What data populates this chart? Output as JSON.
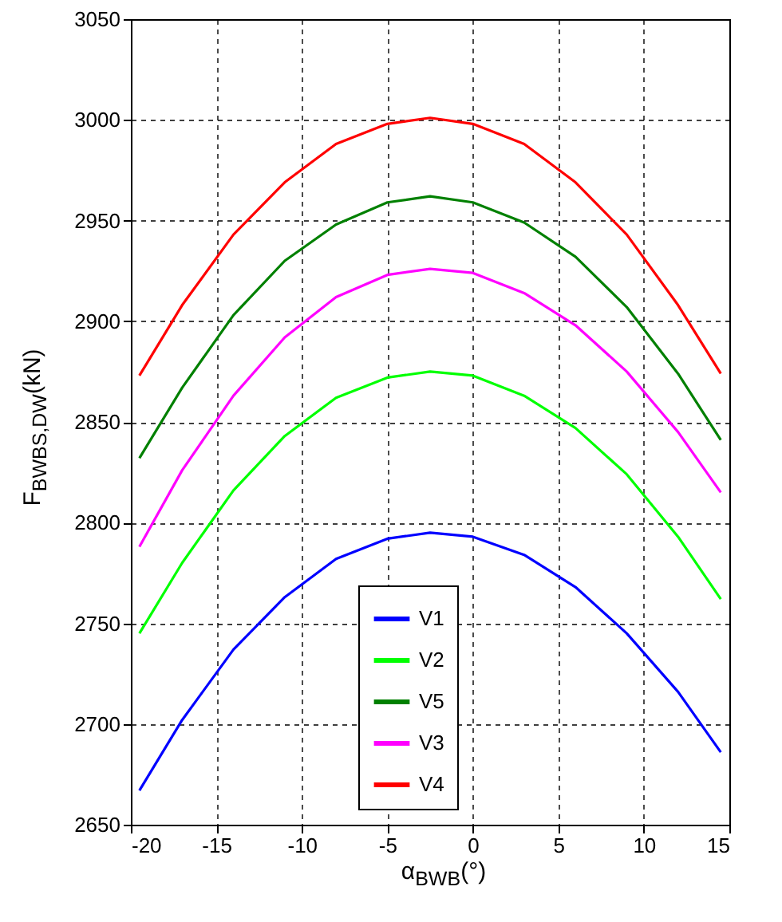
{
  "chart_data": {
    "type": "line",
    "xlabel": "α$_{BWB}$(°)",
    "ylabel": "F$_{BWBS,DW}$(kN)",
    "x": [
      -19.5,
      -17,
      -14,
      -11,
      -8,
      -5,
      -2.5,
      0,
      3,
      6,
      9,
      12,
      14.5
    ],
    "series": [
      {
        "name": "V1",
        "color": "#0000ff",
        "values": [
          2667,
          2702,
          2737,
          2763,
          2782,
          2792,
          2795,
          2793,
          2784,
          2768,
          2745,
          2716,
          2686
        ]
      },
      {
        "name": "V2",
        "color": "#00ff00",
        "values": [
          2745,
          2780,
          2816,
          2843,
          2862,
          2872,
          2875,
          2873,
          2863,
          2847,
          2824,
          2793,
          2762
        ]
      },
      {
        "name": "V5",
        "color": "#008000",
        "values": [
          2832,
          2867,
          2903,
          2930,
          2948,
          2959,
          2962,
          2959,
          2949,
          2932,
          2907,
          2874,
          2841
        ]
      },
      {
        "name": "V3",
        "color": "#ff00ff",
        "values": [
          2788,
          2826,
          2863,
          2892,
          2912,
          2923,
          2926,
          2924,
          2914,
          2898,
          2875,
          2845,
          2815
        ]
      },
      {
        "name": "V4",
        "color": "#ff0000",
        "values": [
          2873,
          2908,
          2943,
          2969,
          2988,
          2998,
          3001,
          2998,
          2988,
          2969,
          2943,
          2908,
          2874
        ]
      }
    ],
    "xlim": [
      -20,
      15
    ],
    "xticks": [
      -20,
      -15,
      -10,
      -5,
      0,
      5,
      10,
      15
    ],
    "ylim": [
      2650,
      3050
    ],
    "yticks": [
      2650,
      2700,
      2750,
      2800,
      2850,
      2900,
      2950,
      3000,
      3050
    ],
    "grid": true,
    "legend": "bottom",
    "marker": "none",
    "line_style": "solid"
  }
}
